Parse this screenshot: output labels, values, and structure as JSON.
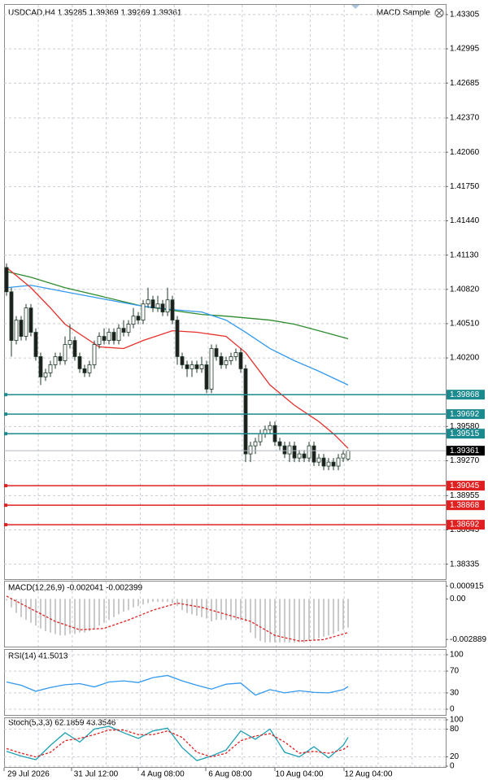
{
  "main_chart": {
    "title": "USDCAD,H4  1.39285 1.39369 1.39269 1.39361",
    "expert": "MACD Sample",
    "ylim": [
      1.382,
      1.434
    ],
    "yticks": [
      1.43305,
      1.42995,
      1.42685,
      {
        "value": 1.4237,
        "label": "1.42370"
      },
      {
        "value": 1.4206,
        "label": "1.42060"
      },
      {
        "value": 1.4175,
        "label": "1.41750"
      },
      {
        "value": 1.4144,
        "label": "1.41440"
      },
      {
        "value": 1.4113,
        "label": "1.41130"
      },
      {
        "value": 1.4082,
        "label": "1.40820"
      },
      {
        "value": 1.4051,
        "label": "1.40510"
      },
      {
        "value": 1.402,
        "label": "1.40200"
      },
      {
        "value": 1.3958,
        "label": "1.39580"
      },
      {
        "value": 1.3927,
        "label": "1.39270"
      },
      1.38955,
      1.38645,
      1.38335
    ],
    "bull_color": "#ffffff",
    "bear_color": "#1e1e1e",
    "candle_outline": "#1e3a28",
    "candles": [
      [
        1.41018,
        1.41055,
        1.40762,
        1.40798
      ],
      [
        1.40798,
        1.40835,
        1.40212,
        1.40358
      ],
      [
        1.40358,
        1.40578,
        1.40322,
        1.40542
      ],
      [
        1.40542,
        1.40578,
        1.40358,
        1.40395
      ],
      [
        1.40395,
        1.40688,
        1.40358,
        1.40652
      ],
      [
        1.40652,
        1.40688,
        1.40395,
        1.40432
      ],
      [
        1.40432,
        1.40468,
        1.40175,
        1.40212
      ],
      [
        1.40212,
        1.40248,
        1.39955,
        1.40028
      ],
      [
        1.40028,
        1.40102,
        1.39992,
        1.40065
      ],
      [
        1.40065,
        1.40175,
        1.40028,
        1.40138
      ],
      [
        1.40138,
        1.40248,
        1.40102,
        1.40212
      ],
      [
        1.40212,
        1.40248,
        1.40138,
        1.40175
      ],
      [
        1.40175,
        1.40395,
        1.40138,
        1.40322
      ],
      [
        1.40322,
        1.40505,
        1.40285,
        1.40358
      ],
      [
        1.40358,
        1.40395,
        1.40175,
        1.40212
      ],
      [
        1.40212,
        1.40248,
        1.40065,
        1.40102
      ],
      [
        1.40102,
        1.40138,
        1.40028,
        1.40065
      ],
      [
        1.40065,
        1.40175,
        1.40028,
        1.40138
      ],
      [
        1.40138,
        1.40358,
        1.40102,
        1.40322
      ],
      [
        1.40322,
        1.40432,
        1.40285,
        1.40395
      ],
      [
        1.40395,
        1.40468,
        1.40322,
        1.40358
      ],
      [
        1.40358,
        1.40468,
        1.40322,
        1.40432
      ],
      [
        1.40432,
        1.40468,
        1.40322,
        1.40358
      ],
      [
        1.40358,
        1.40505,
        1.40322,
        1.40468
      ],
      [
        1.40468,
        1.40542,
        1.40395,
        1.40432
      ],
      [
        1.40432,
        1.40542,
        1.40395,
        1.40505
      ],
      [
        1.40505,
        1.40652,
        1.40468,
        1.40578
      ],
      [
        1.40578,
        1.40615,
        1.40505,
        1.40542
      ],
      [
        1.40542,
        1.40725,
        1.40505,
        1.40688
      ],
      [
        1.40688,
        1.40835,
        1.40652,
        1.40725
      ],
      [
        1.40725,
        1.40762,
        1.40615,
        1.40652
      ],
      [
        1.40652,
        1.40762,
        1.40615,
        1.40688
      ],
      [
        1.40688,
        1.40725,
        1.40578,
        1.40615
      ],
      [
        1.40615,
        1.40835,
        1.40578,
        1.40725
      ],
      [
        1.40725,
        1.40762,
        1.40505,
        1.40542
      ],
      [
        1.40542,
        1.40578,
        1.40138,
        1.40212
      ],
      [
        1.40212,
        1.40248,
        1.40102,
        1.40138
      ],
      [
        1.40138,
        1.40175,
        1.40028,
        1.40102
      ],
      [
        1.40102,
        1.40175,
        1.40028,
        1.40138
      ],
      [
        1.40138,
        1.40175,
        1.40065,
        1.40102
      ],
      [
        1.40102,
        1.40212,
        1.40065,
        1.40138
      ],
      [
        1.40138,
        1.40175,
        1.39882,
        1.39918
      ],
      [
        1.39918,
        1.40322,
        1.39882,
        1.40285
      ],
      [
        1.40285,
        1.40322,
        1.40175,
        1.40212
      ],
      [
        1.40212,
        1.40248,
        1.40102,
        1.40138
      ],
      [
        1.40138,
        1.40212,
        1.40102,
        1.40175
      ],
      [
        1.40175,
        1.40248,
        1.40138,
        1.40212
      ],
      [
        1.40212,
        1.40285,
        1.40175,
        1.40248
      ],
      [
        1.40248,
        1.40285,
        1.40065,
        1.40102
      ],
      [
        1.40102,
        1.40138,
        1.39258,
        1.39332
      ],
      [
        1.39332,
        1.39442,
        1.39258,
        1.39405
      ],
      [
        1.39405,
        1.39478,
        1.39332,
        1.39442
      ],
      [
        1.39442,
        1.39552,
        1.39405,
        1.39515
      ],
      [
        1.39515,
        1.39588,
        1.39478,
        1.39552
      ],
      [
        1.39552,
        1.39625,
        1.39515,
        1.39588
      ],
      [
        1.39588,
        1.39625,
        1.39405,
        1.39442
      ],
      [
        1.39442,
        1.39478,
        1.39368,
        1.39405
      ],
      [
        1.39405,
        1.39442,
        1.39295,
        1.39332
      ],
      [
        1.39332,
        1.39442,
        1.39258,
        1.39405
      ],
      [
        1.39405,
        1.39442,
        1.39258,
        1.39295
      ],
      [
        1.39295,
        1.39368,
        1.39258,
        1.39332
      ],
      [
        1.39332,
        1.39368,
        1.39258,
        1.39295
      ],
      [
        1.39295,
        1.39442,
        1.39258,
        1.39405
      ],
      [
        1.39405,
        1.39442,
        1.39222,
        1.39258
      ],
      [
        1.39258,
        1.39332,
        1.39222,
        1.39295
      ],
      [
        1.39295,
        1.39332,
        1.39185,
        1.39222
      ],
      [
        1.39222,
        1.39295,
        1.39185,
        1.39258
      ],
      [
        1.39258,
        1.39295,
        1.39185,
        1.39222
      ],
      [
        1.39222,
        1.39332,
        1.39185,
        1.39295
      ],
      [
        1.39295,
        1.39368,
        1.39258,
        1.39332
      ],
      [
        1.39285,
        1.39369,
        1.39269,
        1.39361
      ]
    ],
    "moving_averages": [
      {
        "color": "#2e8b2e",
        "x": [
          0,
          5,
          12,
          19,
          28,
          34,
          40,
          45,
          54,
          59,
          64,
          70
        ],
        "values": [
          1.40982,
          1.4093,
          1.40835,
          1.40762,
          1.40667,
          1.4063,
          1.40593,
          1.40578,
          1.40542,
          1.40505,
          1.40446,
          1.40373
        ]
      },
      {
        "color": "#3399ee",
        "x": [
          0,
          5,
          12,
          19,
          28,
          34,
          40,
          45,
          49,
          54,
          59,
          64,
          70
        ],
        "values": [
          1.40835,
          1.40857,
          1.40798,
          1.4074,
          1.40667,
          1.40637,
          1.40615,
          1.40542,
          1.40432,
          1.40285,
          1.40175,
          1.4008,
          1.39955
        ]
      },
      {
        "color": "#e8302a",
        "x": [
          0,
          5,
          9,
          12,
          19,
          24,
          28,
          34,
          39,
          45,
          49,
          54,
          59,
          64,
          67,
          70
        ],
        "values": [
          1.41018,
          1.40835,
          1.40652,
          1.40505,
          1.403,
          1.40285,
          1.40358,
          1.40446,
          1.40432,
          1.40395,
          1.40248,
          1.39955,
          1.39772,
          1.39625,
          1.39515,
          1.39383
        ]
      }
    ],
    "levels": [
      {
        "value": 1.39868,
        "color": "#1b8a8f"
      },
      {
        "value": 1.39692,
        "color": "#1b8a8f"
      },
      {
        "value": 1.39515,
        "color": "#1b8a8f"
      },
      {
        "value": 1.39045,
        "color": "#e02020"
      },
      {
        "value": 1.38868,
        "color": "#e02020"
      },
      {
        "value": 1.38692,
        "color": "#e02020"
      }
    ],
    "last_price": 1.39361
  },
  "macd": {
    "label": "MACD(12,26,9) -0.002041 -0.002399",
    "ylim": [
      -0.0034,
      0.0013
    ],
    "yticks": [
      0.000915,
      {
        "value": 0,
        "label": "0.00"
      },
      -0.002889
    ],
    "histogram_color": "#b8b8b8",
    "histogram": [
      -0.0001,
      -0.0006,
      -0.001,
      -0.0013,
      -0.0015,
      -0.0017,
      -0.0019,
      -0.0021,
      -0.0023,
      -0.0024,
      -0.0025,
      -0.0026,
      -0.0026,
      -0.0025,
      -0.0025,
      -0.0024,
      -0.0024,
      -0.0023,
      -0.0021,
      -0.0019,
      -0.0017,
      -0.0015,
      -0.0013,
      -0.0011,
      -0.0009,
      -0.0008,
      -0.0006,
      -0.0005,
      -0.0004,
      -0.0003,
      -0.0002,
      -0.0002,
      -0.0002,
      -0.0002,
      -0.0003,
      -0.0005,
      -0.0008,
      -0.001,
      -0.0011,
      -0.0012,
      -0.0013,
      -0.0014,
      -0.0016,
      -0.0015,
      -0.0015,
      -0.0015,
      -0.0015,
      -0.0015,
      -0.0015,
      -0.0016,
      -0.0024,
      -0.0028,
      -0.003,
      -0.0031,
      -0.0031,
      -0.0031,
      -0.0031,
      -0.0031,
      -0.0031,
      -0.0031,
      -0.0031,
      -0.0031,
      -0.003,
      -0.0029,
      -0.0028,
      -0.0027,
      -0.0026,
      -0.0025,
      -0.0023,
      -0.0022,
      -0.002041
    ],
    "signal": {
      "color": "#e02020",
      "x": [
        0,
        5,
        10,
        15,
        20,
        25,
        30,
        35,
        40,
        45,
        50,
        55,
        60,
        65,
        70
      ],
      "values": [
        0.0002,
        -0.0007,
        -0.0016,
        -0.0022,
        -0.0021,
        -0.0015,
        -0.0008,
        -0.0003,
        -0.0006,
        -0.0011,
        -0.0016,
        -0.0026,
        -0.003,
        -0.0029,
        -0.002399
      ]
    }
  },
  "rsi": {
    "label": "RSI(14) 41.5013",
    "ylim": [
      0,
      100
    ],
    "yticks": [
      100,
      70,
      30,
      0
    ],
    "line": {
      "color": "#3399ee",
      "x": [
        0,
        3,
        6,
        9,
        12,
        15,
        18,
        21,
        24,
        27,
        30,
        33,
        36,
        39,
        42,
        45,
        48,
        51,
        54,
        57,
        60,
        63,
        66,
        69,
        70
      ],
      "values": [
        50,
        44,
        33,
        40,
        45,
        47,
        41,
        50,
        52,
        49,
        58,
        62,
        52,
        44,
        37,
        46,
        48,
        26,
        36,
        30,
        34,
        31,
        30,
        36,
        41.5013
      ]
    }
  },
  "stoch": {
    "label": "Stoch(5,3,3) 62.1859 43.3546",
    "ylim": [
      0,
      100
    ],
    "yticks": [
      100,
      80,
      20,
      0
    ],
    "main": {
      "color": "#1fa0b4",
      "x": [
        0,
        3,
        6,
        9,
        12,
        15,
        18,
        21,
        24,
        27,
        30,
        33,
        36,
        39,
        42,
        45,
        48,
        51,
        54,
        57,
        60,
        63,
        66,
        69,
        70
      ],
      "values": [
        32,
        22,
        14,
        45,
        72,
        52,
        80,
        86,
        72,
        60,
        76,
        82,
        40,
        12,
        22,
        35,
        76,
        58,
        80,
        30,
        20,
        42,
        18,
        45,
        62.1859
      ]
    },
    "signal": {
      "color": "#e02020",
      "x": [
        0,
        3,
        6,
        9,
        12,
        15,
        18,
        21,
        24,
        27,
        30,
        33,
        36,
        39,
        42,
        45,
        48,
        51,
        54,
        57,
        60,
        63,
        66,
        69,
        70
      ],
      "values": [
        38,
        28,
        20,
        30,
        55,
        60,
        68,
        78,
        78,
        68,
        68,
        76,
        62,
        30,
        20,
        28,
        55,
        65,
        70,
        52,
        28,
        32,
        28,
        36,
        43.3546
      ]
    }
  },
  "time_axis": [
    "29 Jul 2026",
    "31 Jul 12:00",
    "4 Aug 08:00",
    "6 Aug 08:00",
    "10 Aug 04:00",
    "12 Aug 04:00"
  ]
}
